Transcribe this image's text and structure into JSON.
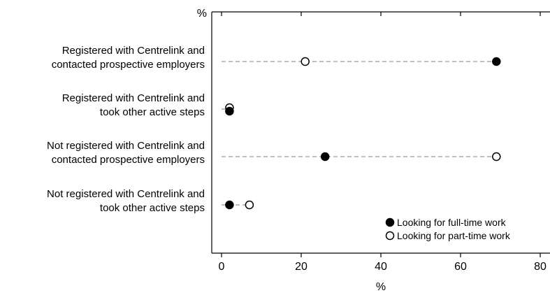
{
  "chart_data": {
    "type": "scatter",
    "xlabel": "%",
    "top_axis_label": "%",
    "xlim": [
      0,
      80
    ],
    "x_ticks": [
      0,
      20,
      40,
      60,
      80
    ],
    "grid": false,
    "legend_placement": "bottom-right",
    "categories": [
      [
        "Registered with Centrelink and",
        "contacted prospective employers"
      ],
      [
        "Registered with Centrelink and",
        "took other active steps"
      ],
      [
        "Not registered with Centrelink and",
        "contacted prospective employers"
      ],
      [
        "Not registered with Centrelink and",
        "took other active steps"
      ]
    ],
    "series": [
      {
        "name": "Looking for full-time work",
        "marker": "filled",
        "values": [
          69,
          2,
          26,
          2
        ]
      },
      {
        "name": "Looking for part-time work",
        "marker": "hollow",
        "values": [
          21,
          2,
          69,
          7
        ]
      }
    ],
    "colors": {
      "axis": "#000000",
      "connector": "#999999",
      "marker": "#000000"
    }
  }
}
